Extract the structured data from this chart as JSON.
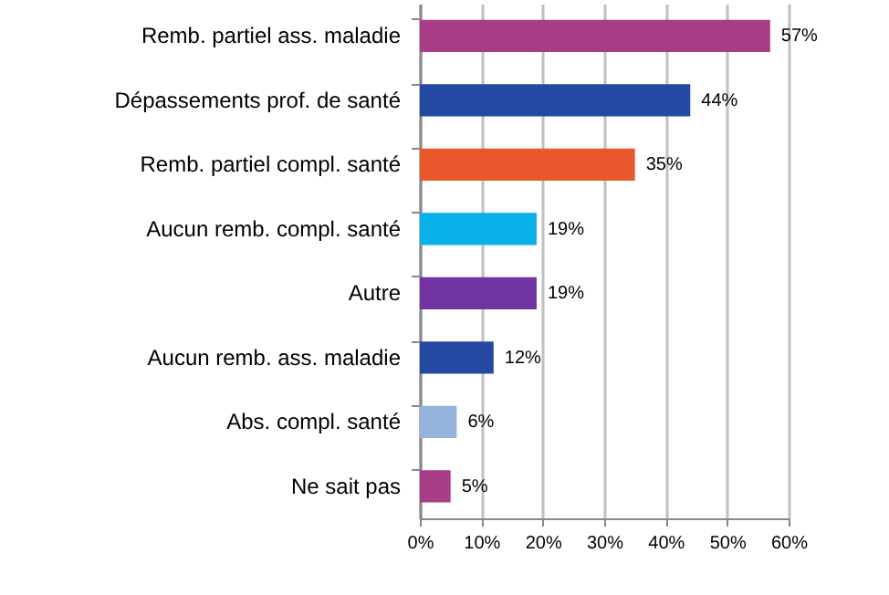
{
  "chart_data": {
    "type": "bar",
    "orientation": "horizontal",
    "categories": [
      "Remb. partiel ass. maladie",
      "Dépassements prof. de santé",
      "Remb. partiel compl. santé",
      "Aucun remb. compl. santé",
      "Autre",
      "Aucun remb. ass. maladie",
      "Abs. compl. santé",
      "Ne sait pas"
    ],
    "values": [
      57,
      44,
      35,
      19,
      19,
      12,
      6,
      5
    ],
    "colors": [
      "#a83c86",
      "#2349a3",
      "#e8582c",
      "#0ab0ea",
      "#7234a3",
      "#2349a3",
      "#94b4dc",
      "#a83c86"
    ],
    "value_labels": [
      "57%",
      "44%",
      "35%",
      "19%",
      "19%",
      "12%",
      "6%",
      "5%"
    ],
    "xlim": [
      0,
      60
    ],
    "xticks": [
      {
        "value": 0,
        "label": "0%"
      },
      {
        "value": 10,
        "label": "10%"
      },
      {
        "value": 20,
        "label": "20%"
      },
      {
        "value": 30,
        "label": "30%"
      },
      {
        "value": 40,
        "label": "40%"
      },
      {
        "value": 50,
        "label": "50%"
      },
      {
        "value": 60,
        "label": "60%"
      }
    ],
    "grid": "x"
  }
}
